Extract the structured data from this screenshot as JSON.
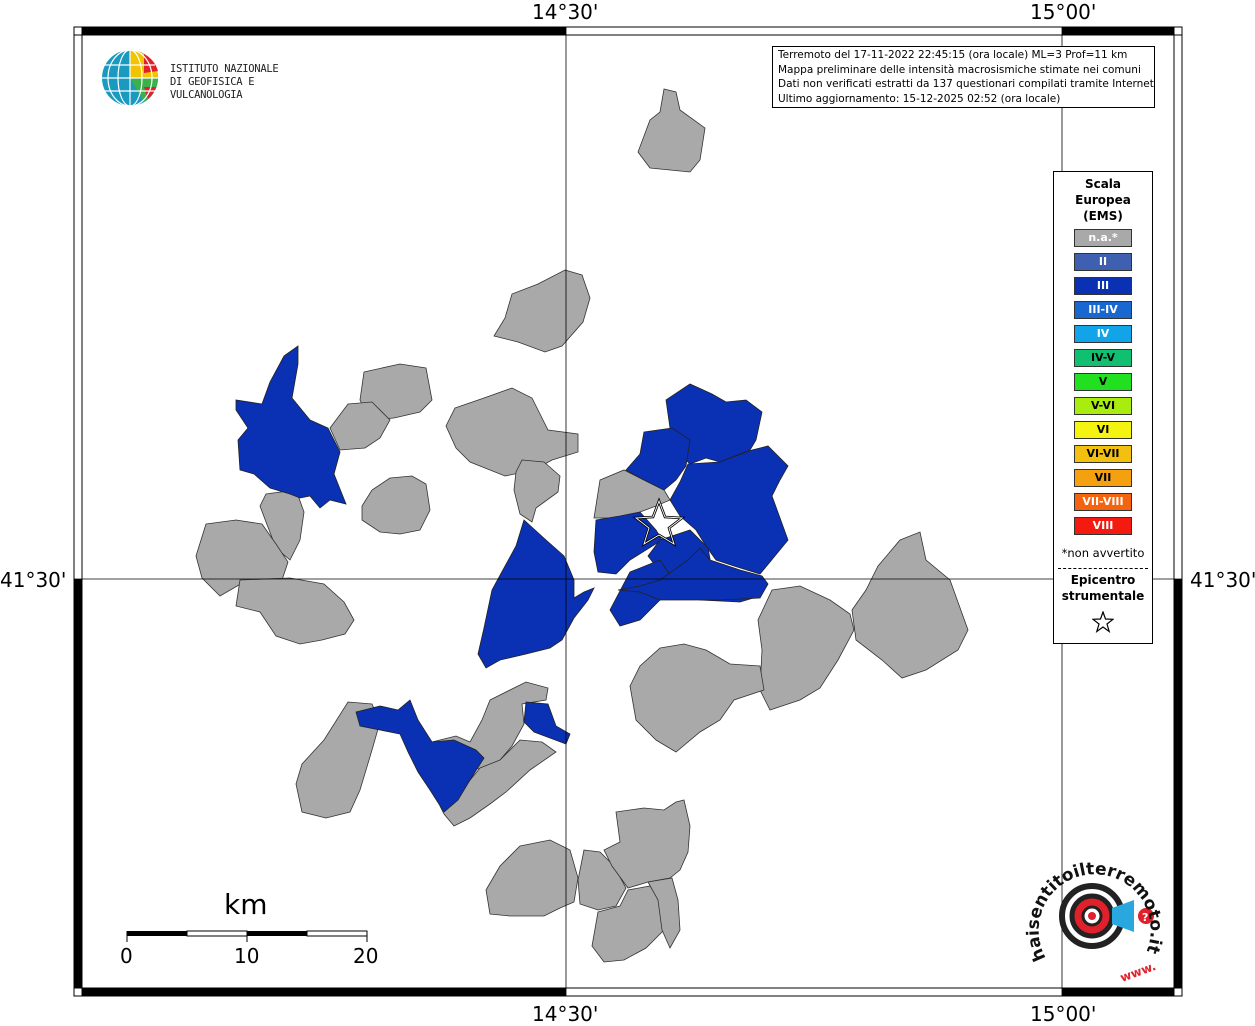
{
  "map": {
    "lon_labels_top": [
      "14°30'",
      "15°00'"
    ],
    "lon_labels_bottom": [
      "14°30'",
      "15°00'"
    ],
    "lat_labels": [
      "41°30'",
      "41°30'"
    ]
  },
  "logo": {
    "line1": "ISTITUTO NAZIONALE",
    "line2": "DI GEOFISICA E VULCANOLOGIA"
  },
  "info": {
    "line1": "Terremoto del 17-11-2022 22:45:15 (ora locale) ML=3 Prof=11 km",
    "line2": "Mappa preliminare delle intensità macrosismiche stimate nei comuni",
    "line3": "Dati non verificati estratti da 137 questionari compilati tramite Internet.",
    "line4": "Ultimo aggiornamento: 15-12-2025 02:52 (ora locale)"
  },
  "legend": {
    "title_line1": "Scala",
    "title_line2": "Europea",
    "title_line3": "(EMS)",
    "items": [
      {
        "label": "n.a.*",
        "color": "#a9a9a9",
        "text_color": "#ffffff"
      },
      {
        "label": "II",
        "color": "#3f5fb0",
        "text_color": "#ffffff"
      },
      {
        "label": "III",
        "color": "#0a30b4",
        "text_color": "#ffffff"
      },
      {
        "label": "III-IV",
        "color": "#1868d0",
        "text_color": "#ffffff"
      },
      {
        "label": "IV",
        "color": "#12a4e8",
        "text_color": "#ffffff"
      },
      {
        "label": "IV-V",
        "color": "#10c070",
        "text_color": "#000000"
      },
      {
        "label": "V",
        "color": "#20e020",
        "text_color": "#000000"
      },
      {
        "label": "V-VI",
        "color": "#a8ec10",
        "text_color": "#000000"
      },
      {
        "label": "VI",
        "color": "#f4f410",
        "text_color": "#000000"
      },
      {
        "label": "VI-VII",
        "color": "#f4c010",
        "text_color": "#000000"
      },
      {
        "label": "VII",
        "color": "#f4a010",
        "text_color": "#000000"
      },
      {
        "label": "VII-VIII",
        "color": "#f46410",
        "text_color": "#ffffff"
      },
      {
        "label": "VIII",
        "color": "#f41a10",
        "text_color": "#ffffff"
      }
    ],
    "note": "*non avvertito",
    "epicenter_line1": "Epicentro",
    "epicenter_line2": "strumentale"
  },
  "scale_bar": {
    "unit": "km",
    "ticks": [
      "0",
      "10",
      "20"
    ]
  },
  "colors": {
    "not_felt": "#a9a9a9",
    "intensity_III": "#0a30b4"
  },
  "badge": {
    "text": "haisentitoilterremoto.it",
    "www": "www."
  }
}
